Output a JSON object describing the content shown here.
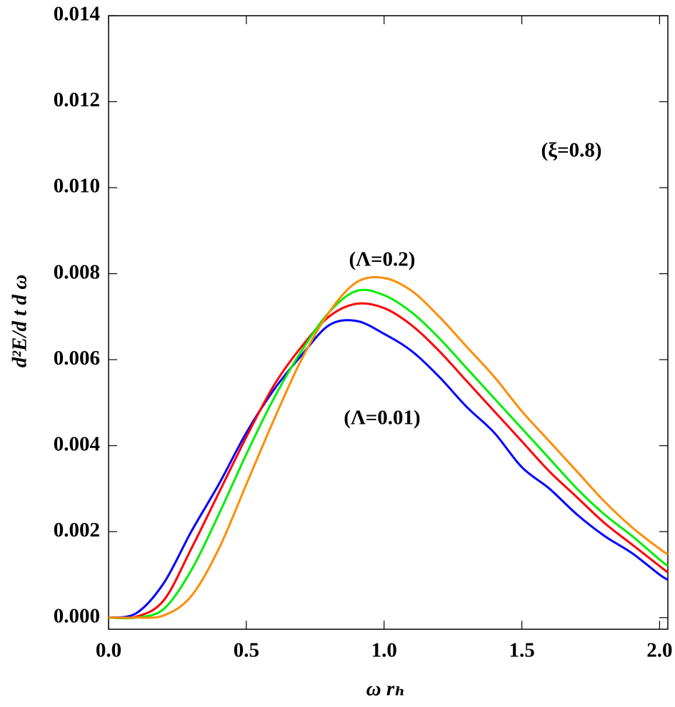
{
  "chart_data": {
    "type": "line",
    "y_label": "d²E/d t d ω",
    "x_label": "ω rₕ",
    "annotations": [
      "(ξ=0.8)",
      "(Λ=0.2)",
      "(Λ=0.01)"
    ],
    "x": [
      0,
      0.1,
      0.2,
      0.3,
      0.4,
      0.5,
      0.6,
      0.7,
      0.8,
      0.9,
      1.0,
      1.1,
      1.2,
      1.3,
      1.4,
      1.5,
      1.6,
      1.7,
      1.8,
      1.9,
      2.0,
      2.03
    ],
    "series": [
      {
        "color": "#0000ff",
        "values": [
          0,
          0.0001,
          0.0008,
          0.002,
          0.0031,
          0.0043,
          0.0053,
          0.0061,
          0.0068,
          0.0069,
          0.0066,
          0.0062,
          0.0056,
          0.0049,
          0.0043,
          0.0035,
          0.003,
          0.0024,
          0.0019,
          0.0015,
          0.001,
          0.00088
        ]
      },
      {
        "color": "#ff0000",
        "values": [
          0,
          2e-05,
          0.0004,
          0.0016,
          0.0029,
          0.0042,
          0.0054,
          0.0063,
          0.007,
          0.0073,
          0.0072,
          0.0068,
          0.0062,
          0.0055,
          0.0048,
          0.0041,
          0.0034,
          0.0028,
          0.0022,
          0.0017,
          0.0012,
          0.00105
        ]
      },
      {
        "color": "#00ee00",
        "values": [
          0,
          0,
          0.0002,
          0.0011,
          0.0024,
          0.0038,
          0.0051,
          0.0062,
          0.0071,
          0.0076,
          0.0075,
          0.0071,
          0.0065,
          0.0058,
          0.0051,
          0.0044,
          0.0037,
          0.003,
          0.0024,
          0.0019,
          0.00135,
          0.0012
        ]
      },
      {
        "color": "#ff8c00",
        "values": [
          0,
          0,
          5e-05,
          0.0005,
          0.0016,
          0.0031,
          0.0046,
          0.006,
          0.0071,
          0.0078,
          0.0079,
          0.0076,
          0.007,
          0.0063,
          0.0056,
          0.0048,
          0.0041,
          0.0034,
          0.0027,
          0.0021,
          0.0016,
          0.00147
        ]
      }
    ],
    "xlim": [
      0,
      2.03
    ],
    "ylim": [
      -0.00027,
      0.014
    ],
    "xticks": [
      {
        "value": 0,
        "label": "0.0"
      },
      0.5,
      {
        "value": 1,
        "label": "1.0"
      },
      1.5,
      {
        "value": 2,
        "label": "2.0"
      }
    ],
    "yticks": [
      {
        "value": 0,
        "label": "0.000"
      },
      {
        "value": 0.002,
        "label": "0.002"
      },
      {
        "value": 0.004,
        "label": "0.004"
      },
      {
        "value": 0.006,
        "label": "0.006"
      },
      {
        "value": 0.008,
        "label": "0.008"
      },
      {
        "value": 0.01,
        "label": "0.010"
      },
      {
        "value": 0.012,
        "label": "0.012"
      },
      {
        "value": 0.014,
        "label": "0.014"
      }
    ],
    "grid": false
  }
}
